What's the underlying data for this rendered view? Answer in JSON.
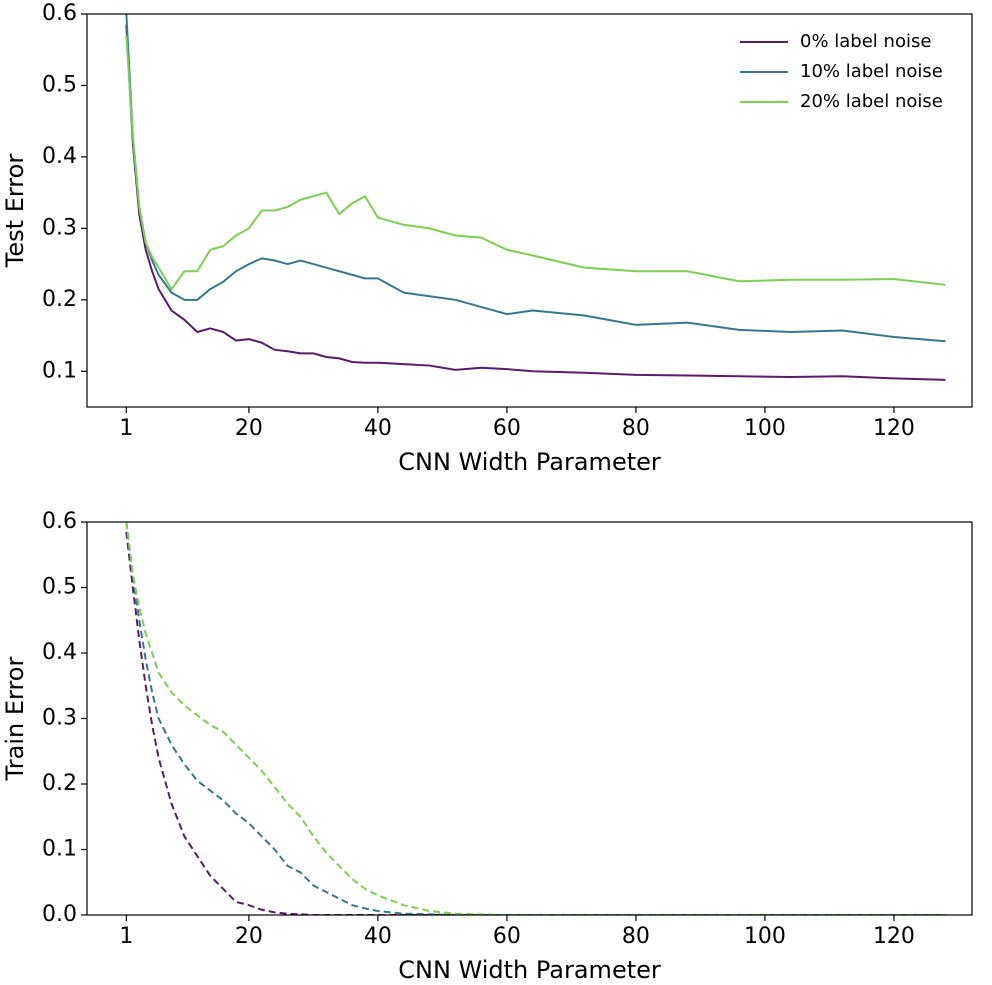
{
  "chart_data": [
    {
      "type": "line",
      "xlabel": "CNN Width Parameter",
      "ylabel": "Test Error",
      "x": [
        1,
        2,
        3,
        4,
        5,
        6,
        8,
        10,
        12,
        14,
        16,
        18,
        20,
        22,
        24,
        26,
        28,
        30,
        32,
        34,
        36,
        38,
        40,
        44,
        48,
        52,
        56,
        60,
        64,
        72,
        80,
        88,
        96,
        104,
        112,
        120,
        128
      ],
      "series": [
        {
          "name": "0% label noise",
          "color": "#5b1a6e",
          "values": [
            0.585,
            0.42,
            0.32,
            0.27,
            0.24,
            0.215,
            0.185,
            0.172,
            0.155,
            0.16,
            0.155,
            0.143,
            0.145,
            0.14,
            0.13,
            0.128,
            0.125,
            0.125,
            0.12,
            0.118,
            0.113,
            0.112,
            0.112,
            0.11,
            0.108,
            0.102,
            0.105,
            0.103,
            0.1,
            0.098,
            0.095,
            0.094,
            0.093,
            0.092,
            0.093,
            0.09,
            0.088
          ]
        },
        {
          "name": "10% label noise",
          "color": "#33788f",
          "values": [
            0.6,
            0.43,
            0.33,
            0.28,
            0.255,
            0.235,
            0.21,
            0.2,
            0.2,
            0.215,
            0.225,
            0.24,
            0.25,
            0.258,
            0.255,
            0.25,
            0.255,
            0.25,
            0.245,
            0.24,
            0.235,
            0.23,
            0.23,
            0.21,
            0.205,
            0.2,
            0.19,
            0.18,
            0.185,
            0.178,
            0.165,
            0.168,
            0.158,
            0.155,
            0.157,
            0.148,
            0.142
          ]
        },
        {
          "name": "20% label noise",
          "color": "#7ad151",
          "values": [
            0.57,
            0.43,
            0.33,
            0.28,
            0.26,
            0.245,
            0.215,
            0.24,
            0.24,
            0.27,
            0.275,
            0.29,
            0.3,
            0.325,
            0.325,
            0.33,
            0.34,
            0.345,
            0.35,
            0.32,
            0.335,
            0.345,
            0.315,
            0.305,
            0.3,
            0.29,
            0.287,
            0.27,
            0.262,
            0.245,
            0.24,
            0.24,
            0.226,
            0.228,
            0.228,
            0.229,
            0.221
          ]
        }
      ],
      "xlim": [
        -5.1,
        132.1
      ],
      "ylim": [
        0.05,
        0.6
      ],
      "xticks": [
        1,
        20,
        40,
        60,
        80,
        100,
        120
      ],
      "yticks": [
        0.1,
        0.2,
        0.3,
        0.4,
        0.5,
        0.6
      ],
      "legend": "upper right",
      "linestyle": "solid"
    },
    {
      "type": "line",
      "xlabel": "CNN Width Parameter",
      "ylabel": "Train Error",
      "x": [
        1,
        2,
        3,
        4,
        5,
        6,
        8,
        10,
        12,
        14,
        16,
        18,
        20,
        22,
        24,
        26,
        28,
        30,
        32,
        34,
        36,
        38,
        40,
        44,
        48,
        52,
        56,
        60,
        64,
        72,
        80,
        88,
        96,
        104,
        112,
        120,
        128
      ],
      "series": [
        {
          "color": "#5b1a6e",
          "values": [
            0.585,
            0.5,
            0.42,
            0.35,
            0.29,
            0.24,
            0.17,
            0.12,
            0.09,
            0.06,
            0.04,
            0.02,
            0.015,
            0.008,
            0.004,
            0.002,
            0.001,
            0,
            0,
            0,
            0,
            0,
            0,
            0,
            0,
            0,
            0,
            0,
            0,
            0,
            0,
            0,
            0,
            0,
            0,
            0,
            0
          ]
        },
        {
          "color": "#33788f",
          "values": [
            0.6,
            0.52,
            0.45,
            0.39,
            0.34,
            0.3,
            0.26,
            0.23,
            0.205,
            0.19,
            0.175,
            0.155,
            0.14,
            0.12,
            0.1,
            0.075,
            0.065,
            0.045,
            0.035,
            0.025,
            0.015,
            0.01,
            0.006,
            0.002,
            0.001,
            0,
            0,
            0,
            0,
            0,
            0,
            0,
            0,
            0,
            0,
            0,
            0
          ]
        },
        {
          "color": "#7ad151",
          "values": [
            0.6,
            0.52,
            0.47,
            0.43,
            0.4,
            0.37,
            0.34,
            0.32,
            0.305,
            0.29,
            0.28,
            0.26,
            0.24,
            0.22,
            0.195,
            0.17,
            0.15,
            0.12,
            0.095,
            0.075,
            0.055,
            0.04,
            0.03,
            0.015,
            0.006,
            0.002,
            0.001,
            0,
            0,
            0,
            0,
            0,
            0,
            0,
            0,
            0,
            0
          ]
        }
      ],
      "xlim": [
        -5.1,
        132.1
      ],
      "ylim": [
        0,
        0.6
      ],
      "xticks": [
        1,
        20,
        40,
        60,
        80,
        100,
        120
      ],
      "yticks": [
        {
          "value": 0,
          "label": "0.0"
        },
        0.1,
        0.2,
        0.3,
        0.4,
        0.5,
        0.6
      ],
      "linestyle": "dashed"
    }
  ]
}
